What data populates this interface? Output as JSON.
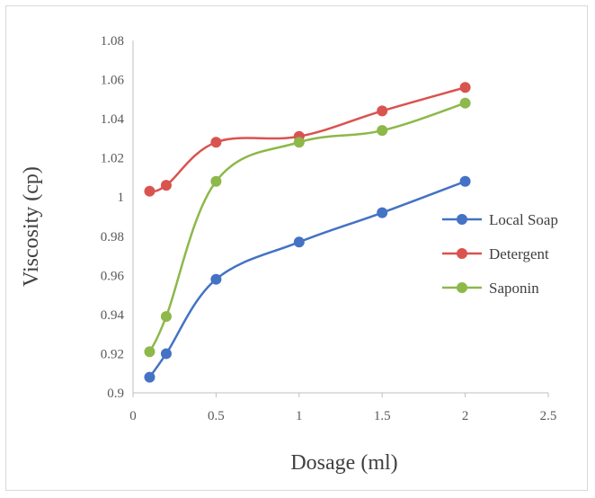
{
  "chart_data": {
    "type": "line",
    "title": "",
    "xlabel": "Dosage (ml)",
    "ylabel": "Viscosity (cp)",
    "xlim": [
      0,
      2.5
    ],
    "ylim": [
      0.9,
      1.08
    ],
    "x_ticks": [
      "0",
      "0.5",
      "1",
      "1.5",
      "2",
      "2.5"
    ],
    "y_ticks": [
      "0.9",
      "0.92",
      "0.94",
      "0.96",
      "0.98",
      "1",
      "1.02",
      "1.04",
      "1.06",
      "1.08"
    ],
    "grid": false,
    "legend_position": "right",
    "smooth": true,
    "series": [
      {
        "name": "Local Soap",
        "color": "#4472C4",
        "x": [
          0.1,
          0.2,
          0.5,
          1,
          1.5,
          2
        ],
        "values": [
          0.908,
          0.92,
          0.958,
          0.977,
          0.992,
          1.008
        ]
      },
      {
        "name": "Detergent",
        "color": "#D9534F",
        "x": [
          0.1,
          0.2,
          0.5,
          1,
          1.5,
          2
        ],
        "values": [
          1.003,
          1.006,
          1.028,
          1.031,
          1.044,
          1.056
        ]
      },
      {
        "name": "Saponin",
        "color": "#8DB84A",
        "x": [
          0.1,
          0.2,
          0.5,
          1,
          1.5,
          2
        ],
        "values": [
          0.921,
          0.939,
          1.008,
          1.028,
          1.034,
          1.048
        ]
      }
    ]
  }
}
